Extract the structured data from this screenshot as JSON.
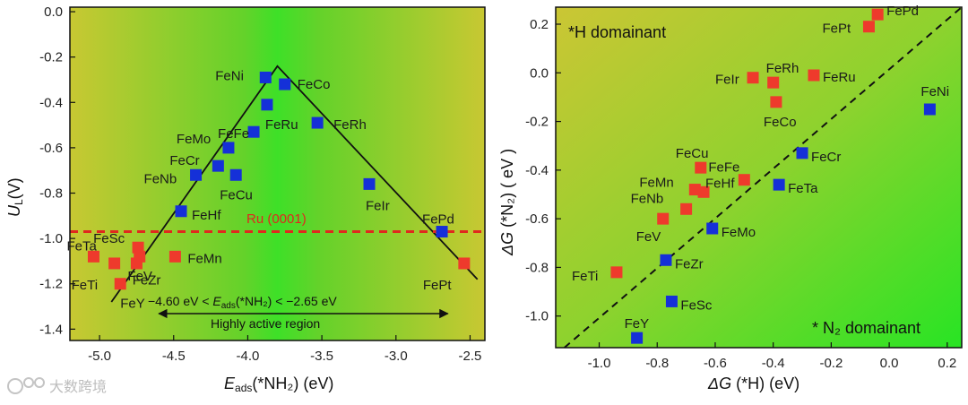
{
  "watermark": "大数跨境",
  "chart_data": [
    {
      "type": "scatter",
      "xlabel": {
        "main": "E",
        "sub": "ads",
        "rest": "(*NH₂) (eV)"
      },
      "ylabel": {
        "main": "U",
        "sub": "L",
        "rest": "(V)"
      },
      "xlim": [
        -5.2,
        -2.4
      ],
      "ylim": [
        -1.45,
        0.02
      ],
      "xticks": [
        -5.0,
        -4.5,
        -4.0,
        -3.5,
        -3.0,
        -2.5
      ],
      "xtick_labels": [
        "-5.0",
        "-4.5",
        "-4.0",
        "-3.5",
        "-3.0",
        "-2.5"
      ],
      "yticks": [
        0.0,
        -0.2,
        -0.4,
        -0.6,
        -0.8,
        -1.0,
        -1.2,
        -1.4
      ],
      "ytick_labels": [
        "0.0",
        "-0.2",
        "-0.4",
        "-0.6",
        "-0.8",
        "-1.0",
        "-1.2",
        "-1.4"
      ],
      "volcano": [
        [
          -4.92,
          -1.28
        ],
        [
          -3.8,
          -0.24
        ],
        [
          -2.45,
          -1.18
        ]
      ],
      "reference_line": {
        "y": -0.97,
        "label": "Ru (0001)",
        "color": "#e0281e"
      },
      "range_text": "−4.60 eV < E_ads(*NH₂) < −2.65 eV",
      "range_parts": {
        "pre": "−4.60 eV < ",
        "E": "E",
        "sub": "ads",
        "post": "(*NH₂) < −2.65 eV"
      },
      "arrow_x": [
        -4.6,
        -2.65
      ],
      "region_label": "Highly active region",
      "series": [
        {
          "name": "blue",
          "color": "#1530d8",
          "points": [
            {
              "label": "FeNi",
              "x": -3.88,
              "y": -0.29
            },
            {
              "label": "FeCo",
              "x": -3.75,
              "y": -0.32
            },
            {
              "label": "FeRu",
              "x": -3.87,
              "y": -0.41
            },
            {
              "label": "FeRh",
              "x": -3.53,
              "y": -0.49
            },
            {
              "label": "FeFe",
              "x": -3.96,
              "y": -0.53
            },
            {
              "label": "FeMo",
              "x": -4.13,
              "y": -0.6
            },
            {
              "label": "FeCr",
              "x": -4.2,
              "y": -0.68
            },
            {
              "label": "FeNb",
              "x": -4.35,
              "y": -0.72
            },
            {
              "label": "FeCu",
              "x": -4.08,
              "y": -0.72
            },
            {
              "label": "FeIr",
              "x": -3.18,
              "y": -0.76
            },
            {
              "label": "FeHf",
              "x": -4.45,
              "y": -0.88
            },
            {
              "label": "FePd",
              "x": -2.69,
              "y": -0.97
            }
          ]
        },
        {
          "name": "red",
          "color": "#ee3a2c",
          "points": [
            {
              "label": "FeSc",
              "x": -4.74,
              "y": -1.04
            },
            {
              "label": "FeTa",
              "x": -5.04,
              "y": -1.08
            },
            {
              "label": "FeMn",
              "x": -4.49,
              "y": -1.08
            },
            {
              "label": "FeV",
              "x": -4.75,
              "y": -1.11
            },
            {
              "label": "FeTi",
              "x": -4.9,
              "y": -1.11
            },
            {
              "label": "FeZr",
              "x": -4.73,
              "y": -1.08
            },
            {
              "label": "FeY",
              "x": -4.86,
              "y": -1.2
            },
            {
              "label": "FePt",
              "x": -2.54,
              "y": -1.11
            }
          ]
        }
      ]
    },
    {
      "type": "scatter",
      "xlabel": {
        "main": "ΔG",
        "rest": " (*H) (eV)"
      },
      "ylabel": {
        "main": "ΔG",
        "rest": " (*N₂) ( eV )"
      },
      "xlim": [
        -1.15,
        0.25
      ],
      "ylim": [
        -1.13,
        0.27
      ],
      "xticks": [
        -1.0,
        -0.8,
        -0.6,
        -0.4,
        -0.2,
        0.0,
        0.2
      ],
      "xtick_labels": [
        "-1.0",
        "-0.8",
        "-0.6",
        "-0.4",
        "-0.2",
        "0.0",
        "0.2"
      ],
      "yticks": [
        0.2,
        0.0,
        -0.2,
        -0.4,
        -0.6,
        -0.8,
        -1.0
      ],
      "ytick_labels": [
        "0.2",
        "0.0",
        "-0.2",
        "-0.4",
        "-0.6",
        "-0.8",
        "-1.0"
      ],
      "diagonal": [
        [
          -1.12,
          -1.13
        ],
        [
          0.25,
          0.27
        ]
      ],
      "annotations": {
        "top_left": "*H domainant",
        "bottom_right_star": "*",
        "bottom_right": " N₂ domainant"
      },
      "series": [
        {
          "name": "red",
          "color": "#ee3a2c",
          "points": [
            {
              "label": "FePd",
              "x": -0.04,
              "y": 0.24
            },
            {
              "label": "FePt",
              "x": -0.07,
              "y": 0.19
            },
            {
              "label": "FeRh",
              "x": -0.4,
              "y": -0.04
            },
            {
              "label": "FeIr",
              "x": -0.47,
              "y": -0.02
            },
            {
              "label": "FeRu",
              "x": -0.26,
              "y": -0.01
            },
            {
              "label": "FeCo",
              "x": -0.39,
              "y": -0.12
            },
            {
              "label": "FeCu",
              "x": -0.65,
              "y": -0.39
            },
            {
              "label": "FeFe",
              "x": -0.5,
              "y": -0.44
            },
            {
              "label": "FeMn",
              "x": -0.67,
              "y": -0.48
            },
            {
              "label": "FeHf",
              "x": -0.64,
              "y": -0.49
            },
            {
              "label": "FeNb",
              "x": -0.7,
              "y": -0.56
            },
            {
              "label": "FeV",
              "x": -0.78,
              "y": -0.6
            },
            {
              "label": "FeTi",
              "x": -0.94,
              "y": -0.82
            }
          ]
        },
        {
          "name": "blue",
          "color": "#1530d8",
          "points": [
            {
              "label": "FeNi",
              "x": 0.14,
              "y": -0.15
            },
            {
              "label": "FeCr",
              "x": -0.3,
              "y": -0.33
            },
            {
              "label": "FeTa",
              "x": -0.38,
              "y": -0.46
            },
            {
              "label": "FeMo",
              "x": -0.61,
              "y": -0.64
            },
            {
              "label": "FeZr",
              "x": -0.77,
              "y": -0.77
            },
            {
              "label": "FeSc",
              "x": -0.75,
              "y": -0.94
            },
            {
              "label": "FeY",
              "x": -0.87,
              "y": -1.09
            }
          ]
        }
      ]
    }
  ]
}
